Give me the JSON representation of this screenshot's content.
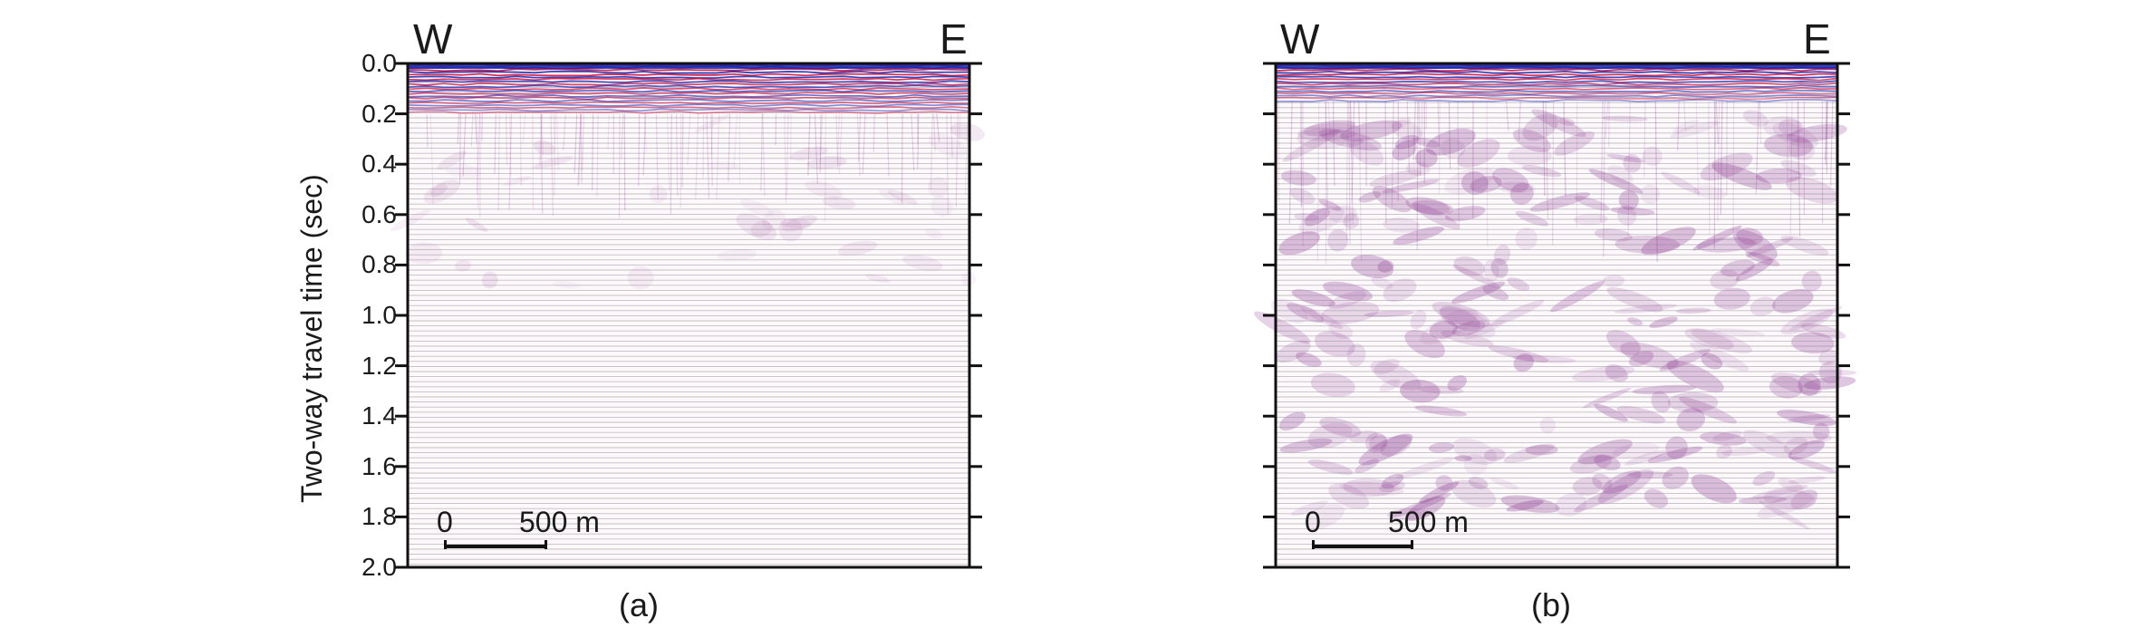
{
  "figure": {
    "ylabel": "Two-way travel time (sec)",
    "y_ticks": [
      "0.0",
      "0.2",
      "0.4",
      "0.6",
      "0.8",
      "1.0",
      "1.2",
      "1.4",
      "1.6",
      "1.8",
      "2.0"
    ],
    "panels": [
      {
        "id": "a",
        "caption": "(a)",
        "left_direction": "W",
        "right_direction": "E",
        "scale_start": "0",
        "scale_end": "500 m",
        "strong_reflection_depth_sec": 0.2,
        "colors": {
          "positive": "#d0103a",
          "negative": "#1a2bb5",
          "noise": "#a0469e"
        }
      },
      {
        "id": "b",
        "caption": "(b)",
        "left_direction": "W",
        "right_direction": "E",
        "scale_start": "0",
        "scale_end": "500 m",
        "strong_reflection_depth_sec": 0.15,
        "colors": {
          "positive": "#d0103a",
          "negative": "#1a2bb5",
          "noise": "#8a2f8f"
        }
      }
    ]
  }
}
